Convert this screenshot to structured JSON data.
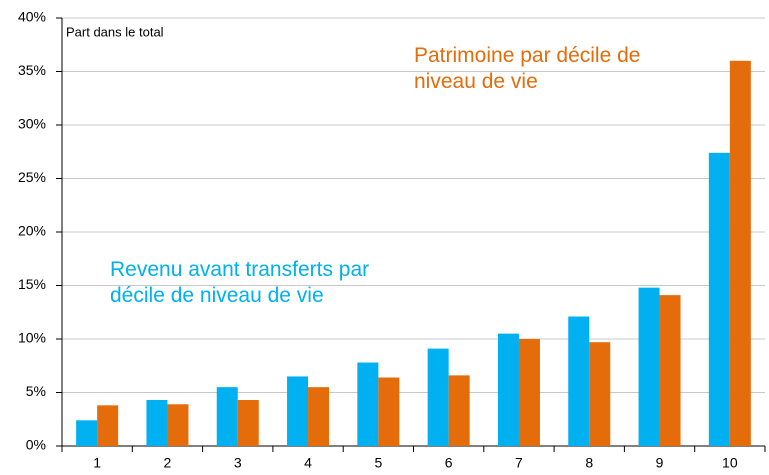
{
  "chart_data": {
    "type": "bar",
    "y_axis_label": "Part dans le total",
    "categories": [
      "1",
      "2",
      "3",
      "4",
      "5",
      "6",
      "7",
      "8",
      "9",
      "10"
    ],
    "series": [
      {
        "name": "Revenu avant transferts par décile de niveau de vie",
        "color": "#00b0f0",
        "values": [
          2.4,
          4.3,
          5.5,
          6.5,
          7.8,
          9.1,
          10.5,
          12.1,
          14.8,
          27.4
        ]
      },
      {
        "name": "Patrimoine par décile de niveau de vie",
        "color": "#e46c0a",
        "values": [
          3.8,
          3.9,
          4.3,
          5.5,
          6.4,
          6.6,
          10.0,
          9.7,
          14.1,
          36.0
        ]
      }
    ],
    "ylim": [
      0,
      40
    ],
    "yticks": [
      {
        "value": 0,
        "label": "0%"
      },
      {
        "value": 5,
        "label": "5%"
      },
      {
        "value": 10,
        "label": "10%"
      },
      {
        "value": 15,
        "label": "15%"
      },
      {
        "value": 20,
        "label": "20%"
      },
      {
        "value": 25,
        "label": "25%"
      },
      {
        "value": 30,
        "label": "30%"
      },
      {
        "value": 35,
        "label": "35%"
      },
      {
        "value": 40,
        "label": "40%"
      }
    ],
    "grid": true
  }
}
